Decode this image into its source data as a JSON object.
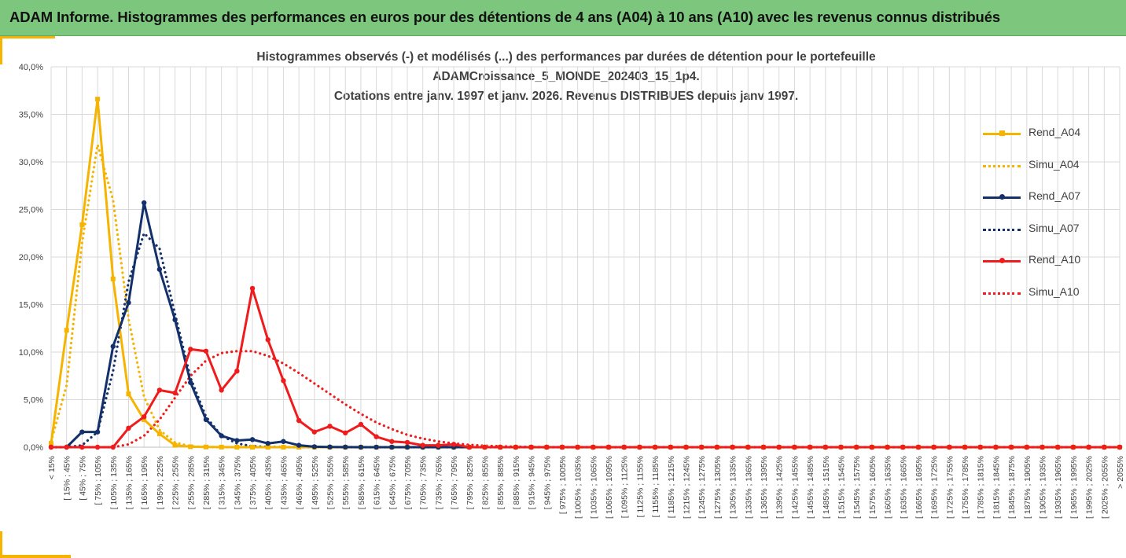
{
  "banner": {
    "title": "ADAM Informe. Histogrammes des performances en euros pour des détentions de 4 ans (A04) à 10 ans (A10) avec les revenus connus distribués"
  },
  "colors": {
    "banner": "#7dc67e",
    "A04": "#f4b400",
    "A07": "#13306b",
    "A10": "#ee1c1c",
    "grid": "#d9d9d9",
    "text": "#404040"
  },
  "chart_data": {
    "type": "line",
    "title": [
      "Histogrammes observés (-) et modélisés (...) des performances par durées de détention pour le portefeuille",
      "ADAMCroissance_5_MONDE_202403_15_1p4.",
      "Cotations entre janv. 1997 et janv. 2026. Revenus DISTRIBUES depuis janv 1997."
    ],
    "categories": [
      "< 15%",
      "[ 15% ; 45%",
      "[ 45% ; 75%",
      "[ 75% ; 105%",
      "[ 105% ; 135%",
      "[ 135% ; 165%",
      "[ 165% ; 195%",
      "[ 195% ; 225%",
      "[ 225% ; 255%",
      "[ 255% ; 285%",
      "[ 285% ; 315%",
      "[ 315% ; 345%",
      "[ 345% ; 375%",
      "[ 375% ; 405%",
      "[ 405% ; 435%",
      "[ 435% ; 465%",
      "[ 465% ; 495%",
      "[ 495% ; 525%",
      "[ 525% ; 555%",
      "[ 555% ; 585%",
      "[ 585% ; 615%",
      "[ 615% ; 645%",
      "[ 645% ; 675%",
      "[ 675% ; 705%",
      "[ 705% ; 735%",
      "[ 735% ; 765%",
      "[ 765% ; 795%",
      "[ 795% ; 825%",
      "[ 825% ; 855%",
      "[ 855% ; 885%",
      "[ 885% ; 915%",
      "[ 915% ; 945%",
      "[ 945% ; 975%",
      "[ 975% ; 1005%",
      "[ 1005% ; 1035%",
      "[ 1035% ; 1065%",
      "[ 1065% ; 1095%",
      "[ 1095% ; 1125%",
      "[ 1125% ; 1155%",
      "[ 1155% ; 1185%",
      "[ 1185% ; 1215%",
      "[ 1215% ; 1245%",
      "[ 1245% ; 1275%",
      "[ 1275% ; 1305%",
      "[ 1305% ; 1335%",
      "[ 1335% ; 1365%",
      "[ 1365% ; 1395%",
      "[ 1395% ; 1425%",
      "[ 1425% ; 1455%",
      "[ 1455% ; 1485%",
      "[ 1485% ; 1515%",
      "[ 1515% ; 1545%",
      "[ 1545% ; 1575%",
      "[ 1575% ; 1605%",
      "[ 1605% ; 1635%",
      "[ 1635% ; 1665%",
      "[ 1665% ; 1695%",
      "[ 1695% ; 1725%",
      "[ 1725% ; 1755%",
      "[ 1755% ; 1785%",
      "[ 1785% ; 1815%",
      "[ 1815% ; 1845%",
      "[ 1845% ; 1875%",
      "[ 1875% ; 1905%",
      "[ 1905% ; 1935%",
      "[ 1935% ; 1965%",
      "[ 1965% ; 1995%",
      "[ 1995% ; 2025%",
      "[ 2025% ; 2055%",
      "> 2055%"
    ],
    "ylim": [
      0,
      40
    ],
    "yticks": [
      "0,0%",
      "5,0%",
      "10,0%",
      "15,0%",
      "20,0%",
      "25,0%",
      "30,0%",
      "35,0%",
      "40,0%"
    ],
    "grid": true,
    "legend": "right",
    "series": [
      {
        "name": "Rend_A04",
        "style": "solid",
        "marker": "square",
        "color": "#f4b400",
        "values": [
          0.4,
          12.3,
          23.4,
          36.6,
          17.7,
          5.6,
          2.9,
          1.4,
          0.2,
          0.05,
          0.02,
          0.01,
          0,
          0,
          0,
          0,
          0,
          0,
          0,
          0,
          0,
          0,
          0,
          0,
          0,
          0,
          0,
          0,
          0,
          0,
          0,
          0,
          0,
          0,
          0,
          0,
          0,
          0,
          0,
          0,
          0,
          0,
          0,
          0,
          0,
          0,
          0,
          0,
          0,
          0,
          0,
          0,
          0,
          0,
          0,
          0,
          0,
          0,
          0,
          0,
          0,
          0,
          0,
          0,
          0,
          0,
          0,
          0,
          0,
          0
        ]
      },
      {
        "name": "Simu_A04",
        "style": "dotted",
        "marker": "none",
        "color": "#f4b400",
        "values": [
          0.6,
          6.5,
          21.5,
          31.8,
          26.0,
          13.5,
          5.3,
          1.8,
          0.5,
          0.1,
          0.02,
          0,
          0,
          0,
          0,
          0,
          0,
          0,
          0,
          0,
          0,
          0,
          0,
          0,
          0,
          0,
          0,
          0,
          0,
          0,
          0,
          0,
          0,
          0,
          0,
          0,
          0,
          0,
          0,
          0,
          0,
          0,
          0,
          0,
          0,
          0,
          0,
          0,
          0,
          0,
          0,
          0,
          0,
          0,
          0,
          0,
          0,
          0,
          0,
          0,
          0,
          0,
          0,
          0,
          0,
          0,
          0,
          0,
          0,
          0
        ]
      },
      {
        "name": "Rend_A07",
        "style": "solid",
        "marker": "circle",
        "color": "#13306b",
        "values": [
          0,
          0,
          1.6,
          1.6,
          10.6,
          15.2,
          25.7,
          18.7,
          13.4,
          6.8,
          2.9,
          1.2,
          0.7,
          0.8,
          0.4,
          0.6,
          0.2,
          0.05,
          0.02,
          0.01,
          0,
          0,
          0,
          0,
          0,
          0,
          0,
          0,
          0,
          0,
          0,
          0,
          0,
          0,
          0,
          0,
          0,
          0,
          0,
          0,
          0,
          0,
          0,
          0,
          0,
          0,
          0,
          0,
          0,
          0,
          0,
          0,
          0,
          0,
          0,
          0,
          0,
          0,
          0,
          0,
          0,
          0,
          0,
          0,
          0,
          0,
          0,
          0,
          0,
          0
        ]
      },
      {
        "name": "Simu_A07",
        "style": "dotted",
        "marker": "none",
        "color": "#13306b",
        "values": [
          0,
          0,
          0.2,
          1.6,
          8.0,
          17.4,
          22.5,
          20.9,
          14.0,
          7.3,
          3.2,
          1.2,
          0.4,
          0.1,
          0.03,
          0,
          0,
          0,
          0,
          0,
          0,
          0,
          0,
          0,
          0,
          0,
          0,
          0,
          0,
          0,
          0,
          0,
          0,
          0,
          0,
          0,
          0,
          0,
          0,
          0,
          0,
          0,
          0,
          0,
          0,
          0,
          0,
          0,
          0,
          0,
          0,
          0,
          0,
          0,
          0,
          0,
          0,
          0,
          0,
          0,
          0,
          0,
          0,
          0,
          0,
          0,
          0,
          0,
          0,
          0
        ]
      },
      {
        "name": "Rend_A10",
        "style": "solid",
        "marker": "circle",
        "color": "#ee1c1c",
        "values": [
          0,
          0,
          0,
          0,
          0,
          2.0,
          3.2,
          6.0,
          5.7,
          10.3,
          10.1,
          6.0,
          8.0,
          16.7,
          11.3,
          7.0,
          2.8,
          1.6,
          2.2,
          1.5,
          2.4,
          1.1,
          0.6,
          0.5,
          0.2,
          0.2,
          0.3,
          0,
          0,
          0,
          0,
          0,
          0,
          0,
          0,
          0,
          0,
          0,
          0,
          0,
          0,
          0,
          0,
          0,
          0,
          0,
          0,
          0,
          0,
          0,
          0,
          0,
          0,
          0,
          0,
          0,
          0,
          0,
          0,
          0,
          0,
          0,
          0,
          0,
          0,
          0,
          0,
          0,
          0,
          0
        ]
      },
      {
        "name": "Simu_A10",
        "style": "dotted",
        "marker": "none",
        "color": "#ee1c1c",
        "values": [
          0,
          0,
          0,
          0,
          0,
          0.3,
          1.2,
          2.9,
          5.2,
          7.5,
          9.1,
          9.9,
          10.1,
          10.1,
          9.6,
          8.8,
          7.8,
          6.7,
          5.6,
          4.5,
          3.5,
          2.6,
          1.9,
          1.3,
          0.9,
          0.6,
          0.4,
          0.25,
          0.15,
          0.1,
          0.05,
          0.02,
          0,
          0,
          0,
          0,
          0,
          0,
          0,
          0,
          0,
          0,
          0,
          0,
          0,
          0,
          0,
          0,
          0,
          0,
          0,
          0,
          0,
          0,
          0,
          0,
          0,
          0,
          0,
          0,
          0,
          0,
          0,
          0,
          0,
          0,
          0,
          0,
          0,
          0
        ]
      }
    ]
  }
}
